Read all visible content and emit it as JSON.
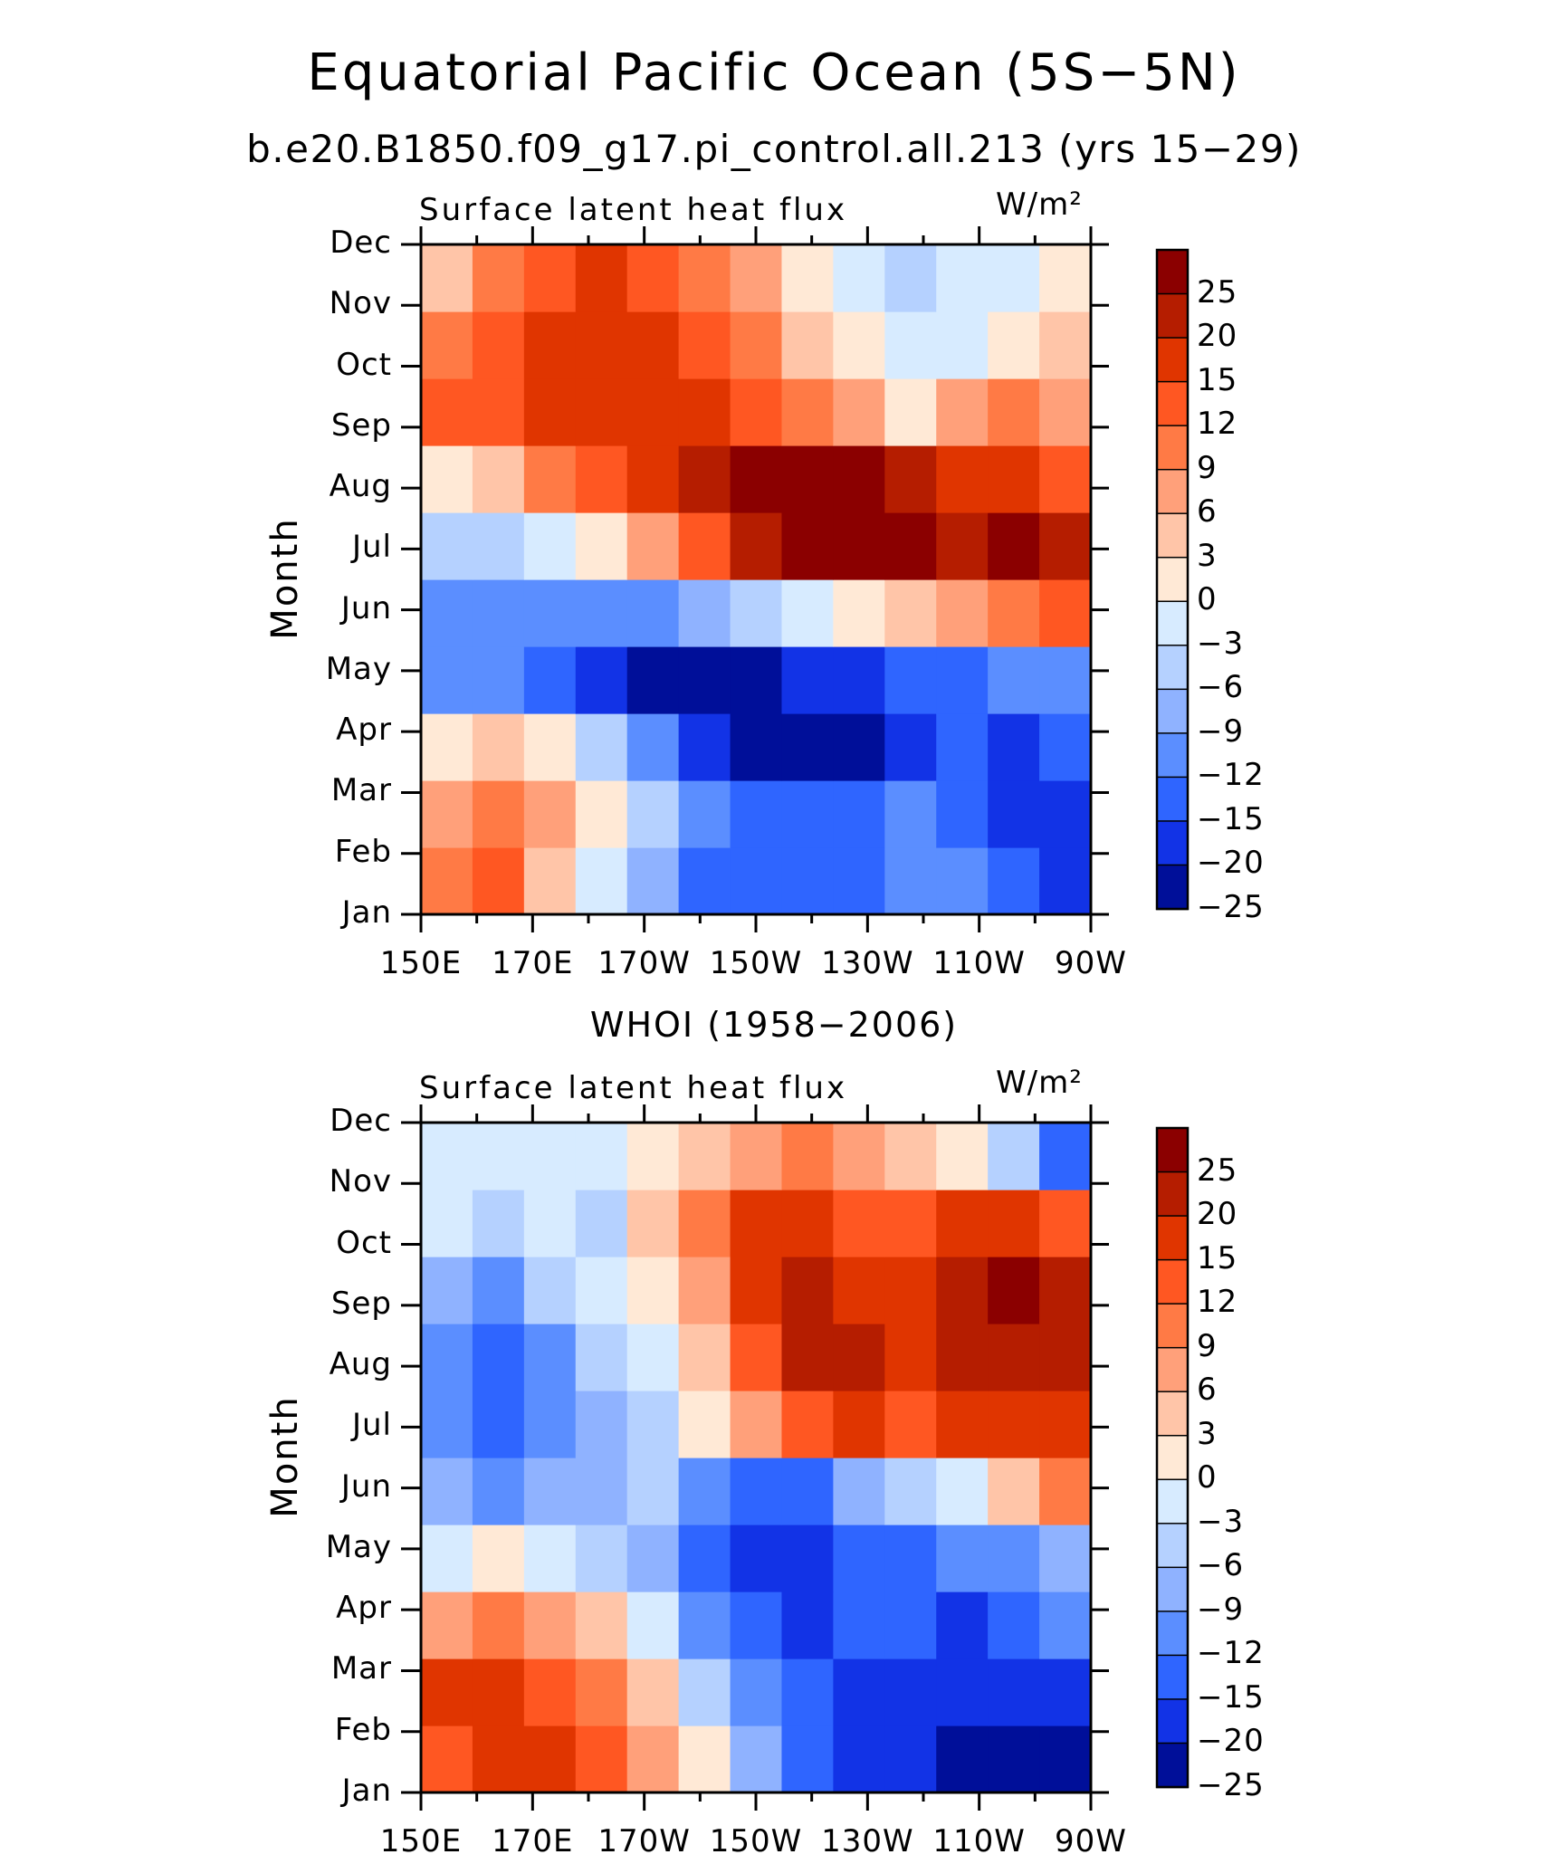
{
  "title": "Equatorial Pacific Ocean (5S−5N)",
  "chart_data": [
    {
      "type": "heatmap",
      "subtitle": "b.e20.B1850.f09_g17.pi_control.all.213 (yrs 15−29)",
      "left_title": "Surface latent heat flux",
      "units": "W/m²",
      "ylabel": "Month",
      "x_ticks": [
        "150E",
        "170E",
        "170W",
        "150W",
        "130W",
        "110W",
        "90W"
      ],
      "y_ticks": [
        "Jan",
        "Feb",
        "Mar",
        "Apr",
        "May",
        "Jun",
        "Jul",
        "Aug",
        "Sep",
        "Oct",
        "Nov",
        "Dec"
      ],
      "colorbar_labels": [
        "25",
        "20",
        "15",
        "12",
        "9",
        "6",
        "3",
        "0",
        "−3",
        "−6",
        "−9",
        "−12",
        "−15",
        "−20",
        "−25"
      ],
      "grid": [
        [
          9,
          12,
          3,
          -3,
          -9,
          -15,
          -15,
          -15,
          -15,
          -12,
          -12,
          -15,
          -20
        ],
        [
          6,
          9,
          6,
          0,
          -6,
          -12,
          -15,
          -15,
          -15,
          -12,
          -15,
          -20,
          -20
        ],
        [
          0,
          3,
          0,
          -6,
          -12,
          -20,
          -25,
          -25,
          -25,
          -20,
          -15,
          -20,
          -15
        ],
        [
          -12,
          -12,
          -15,
          -20,
          -25,
          -25,
          -25,
          -20,
          -20,
          -15,
          -15,
          -12,
          -12
        ],
        [
          -12,
          -12,
          -12,
          -12,
          -12,
          -9,
          -6,
          -3,
          0,
          3,
          6,
          9,
          12
        ],
        [
          -6,
          -6,
          -3,
          0,
          6,
          12,
          20,
          25,
          25,
          25,
          20,
          25,
          20
        ],
        [
          0,
          3,
          9,
          12,
          15,
          20,
          25,
          25,
          25,
          20,
          15,
          15,
          12
        ],
        [
          12,
          12,
          15,
          15,
          15,
          15,
          12,
          9,
          6,
          0,
          6,
          9,
          6
        ],
        [
          9,
          12,
          15,
          15,
          15,
          12,
          9,
          3,
          0,
          -3,
          -3,
          0,
          3
        ],
        [
          3,
          9,
          12,
          15,
          12,
          9,
          6,
          0,
          -3,
          -6,
          -3,
          -3,
          0
        ]
      ]
    },
    {
      "type": "heatmap",
      "subtitle": "WHOI (1958−2006)",
      "left_title": "Surface latent heat flux",
      "units": "W/m²",
      "ylabel": "Month",
      "x_ticks": [
        "150E",
        "170E",
        "170W",
        "150W",
        "130W",
        "110W",
        "90W"
      ],
      "y_ticks": [
        "Jan",
        "Feb",
        "Mar",
        "Apr",
        "May",
        "Jun",
        "Jul",
        "Aug",
        "Sep",
        "Oct",
        "Nov",
        "Dec"
      ],
      "colorbar_labels": [
        "25",
        "20",
        "15",
        "12",
        "9",
        "6",
        "3",
        "0",
        "−3",
        "−6",
        "−9",
        "−12",
        "−15",
        "−20",
        "−25"
      ],
      "grid": [
        [
          12,
          15,
          15,
          12,
          6,
          0,
          -9,
          -15,
          -20,
          -20,
          -25,
          -25,
          -25
        ],
        [
          15,
          15,
          12,
          9,
          3,
          -6,
          -12,
          -15,
          -20,
          -20,
          -20,
          -20,
          -20
        ],
        [
          6,
          9,
          6,
          3,
          -3,
          -12,
          -15,
          -20,
          -15,
          -15,
          -20,
          -15,
          -12
        ],
        [
          -3,
          0,
          -3,
          -6,
          -9,
          -15,
          -20,
          -20,
          -15,
          -15,
          -12,
          -12,
          -9
        ],
        [
          -9,
          -12,
          -9,
          -9,
          -6,
          -12,
          -15,
          -15,
          -9,
          -6,
          -3,
          3,
          9
        ],
        [
          -12,
          -15,
          -12,
          -9,
          -6,
          0,
          6,
          12,
          15,
          12,
          15,
          15,
          15
        ],
        [
          -12,
          -15,
          -12,
          -6,
          -3,
          3,
          12,
          20,
          20,
          15,
          20,
          20,
          20
        ],
        [
          -9,
          -12,
          -6,
          -3,
          0,
          6,
          15,
          20,
          15,
          15,
          20,
          25,
          20
        ],
        [
          -3,
          -6,
          -3,
          -6,
          3,
          9,
          15,
          15,
          12,
          12,
          15,
          15,
          12
        ],
        [
          -3,
          -3,
          -3,
          -3,
          0,
          3,
          6,
          9,
          6,
          3,
          0,
          -6,
          -15
        ]
      ]
    }
  ]
}
